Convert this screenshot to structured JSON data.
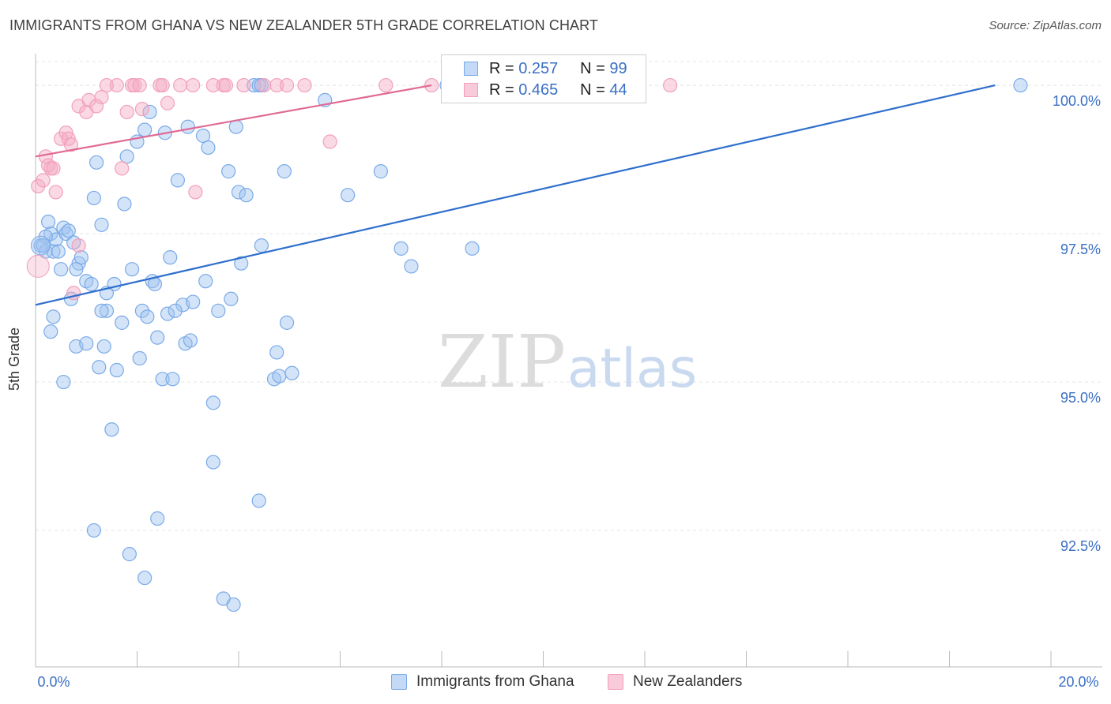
{
  "title": "IMMIGRANTS FROM GHANA VS NEW ZEALANDER 5TH GRADE CORRELATION CHART",
  "source": "Source: ZipAtlas.com",
  "watermark": {
    "zip": "ZIP",
    "atlas": "atlas"
  },
  "legend": {
    "r_label": "R =",
    "n_label": "N =",
    "series": [
      {
        "r": "0.257",
        "n": "99"
      },
      {
        "r": "0.465",
        "n": "44"
      }
    ]
  },
  "chart_data": {
    "type": "scatter",
    "title": "IMMIGRANTS FROM GHANA VS NEW ZEALANDER 5TH GRADE CORRELATION CHART",
    "ylabel": "5th Grade",
    "xlabel": "",
    "xlim": [
      0,
      20
    ],
    "ylim": [
      90.2,
      100.4
    ],
    "x_tick_labels": [
      "0.0%",
      "20.0%"
    ],
    "y_ticks": [
      92.5,
      95.0,
      97.5,
      100.0
    ],
    "y_tick_labels": [
      "92.5%",
      "95.0%",
      "97.5%",
      "100.0%"
    ],
    "series": [
      {
        "name": "Immigrants from Ghana",
        "color": "#7aaae8",
        "line_color": "#2f6fcc",
        "trend": {
          "x": [
            0,
            18.9
          ],
          "y": [
            96.3,
            100.0
          ]
        },
        "points": [
          [
            0.1,
            97.3
          ],
          [
            0.2,
            97.2
          ],
          [
            0.25,
            97.7
          ],
          [
            0.3,
            97.5
          ],
          [
            0.35,
            97.2
          ],
          [
            0.4,
            97.4
          ],
          [
            0.45,
            97.2
          ],
          [
            0.5,
            96.9
          ],
          [
            0.55,
            97.6
          ],
          [
            0.6,
            97.5
          ],
          [
            0.65,
            97.55
          ],
          [
            0.7,
            96.4
          ],
          [
            0.75,
            97.35
          ],
          [
            0.85,
            97.0
          ],
          [
            0.9,
            97.1
          ],
          [
            1.0,
            96.7
          ],
          [
            1.1,
            96.65
          ],
          [
            1.15,
            98.1
          ],
          [
            1.2,
            98.7
          ],
          [
            1.3,
            97.65
          ],
          [
            1.4,
            96.2
          ],
          [
            1.55,
            96.65
          ],
          [
            1.6,
            95.2
          ],
          [
            1.7,
            96.0
          ],
          [
            1.75,
            98.0
          ],
          [
            1.8,
            98.8
          ],
          [
            1.9,
            96.9
          ],
          [
            2.0,
            99.05
          ],
          [
            2.05,
            95.4
          ],
          [
            2.1,
            96.2
          ],
          [
            2.15,
            99.25
          ],
          [
            2.2,
            96.1
          ],
          [
            2.3,
            96.7
          ],
          [
            2.35,
            96.65
          ],
          [
            2.4,
            95.75
          ],
          [
            2.5,
            95.05
          ],
          [
            2.55,
            99.2
          ],
          [
            2.6,
            96.15
          ],
          [
            2.65,
            97.1
          ],
          [
            2.8,
            98.4
          ],
          [
            2.9,
            96.3
          ],
          [
            2.95,
            95.65
          ],
          [
            3.0,
            99.3
          ],
          [
            3.05,
            95.7
          ],
          [
            3.1,
            96.35
          ],
          [
            3.3,
            99.15
          ],
          [
            3.35,
            96.7
          ],
          [
            3.4,
            98.95
          ],
          [
            3.5,
            94.65
          ],
          [
            3.6,
            96.2
          ],
          [
            3.7,
            91.35
          ],
          [
            3.8,
            98.55
          ],
          [
            3.85,
            96.4
          ],
          [
            3.9,
            91.25
          ],
          [
            3.95,
            99.3
          ],
          [
            4.0,
            98.2
          ],
          [
            4.05,
            97.0
          ],
          [
            4.15,
            98.15
          ],
          [
            4.3,
            100.0
          ],
          [
            4.4,
            100.0
          ],
          [
            4.4,
            93.0
          ],
          [
            4.45,
            97.3
          ],
          [
            4.7,
            95.05
          ],
          [
            4.8,
            95.1
          ],
          [
            4.75,
            95.5
          ],
          [
            4.9,
            98.55
          ],
          [
            4.95,
            96.0
          ],
          [
            5.05,
            95.15
          ],
          [
            5.7,
            99.75
          ],
          [
            6.15,
            98.15
          ],
          [
            6.8,
            98.55
          ],
          [
            7.2,
            97.25
          ],
          [
            7.4,
            96.95
          ],
          [
            8.2,
            100.0
          ],
          [
            8.6,
            97.25
          ],
          [
            0.2,
            97.45
          ],
          [
            0.15,
            97.3
          ],
          [
            0.3,
            95.85
          ],
          [
            0.35,
            96.1
          ],
          [
            0.55,
            95.0
          ],
          [
            0.8,
            95.6
          ],
          [
            1.3,
            96.2
          ],
          [
            1.5,
            94.2
          ],
          [
            1.15,
            92.5
          ],
          [
            1.85,
            92.1
          ],
          [
            2.15,
            91.7
          ],
          [
            2.4,
            92.7
          ],
          [
            2.7,
            95.05
          ],
          [
            3.5,
            93.65
          ],
          [
            2.25,
            99.55
          ],
          [
            1.0,
            95.65
          ],
          [
            1.25,
            95.25
          ],
          [
            1.35,
            95.6
          ],
          [
            4.45,
            100.0
          ],
          [
            8.1,
            100.0
          ],
          [
            19.4,
            100.0
          ],
          [
            1.4,
            96.5
          ],
          [
            0.8,
            96.9
          ],
          [
            2.75,
            96.2
          ]
        ]
      },
      {
        "name": "New Zealanders",
        "color": "#f2a0bc",
        "line_color": "#e06a95",
        "trend": {
          "x": [
            0,
            7.8
          ],
          "y": [
            98.8,
            100.0
          ]
        },
        "points": [
          [
            0.05,
            98.3
          ],
          [
            0.15,
            98.4
          ],
          [
            0.2,
            98.8
          ],
          [
            0.25,
            98.65
          ],
          [
            0.3,
            98.6
          ],
          [
            0.35,
            98.6
          ],
          [
            0.4,
            98.2
          ],
          [
            0.5,
            99.1
          ],
          [
            0.6,
            99.2
          ],
          [
            0.65,
            99.1
          ],
          [
            0.7,
            99.0
          ],
          [
            0.85,
            99.65
          ],
          [
            1.0,
            99.55
          ],
          [
            1.05,
            99.75
          ],
          [
            1.2,
            99.65
          ],
          [
            1.3,
            99.8
          ],
          [
            1.4,
            100.0
          ],
          [
            1.6,
            100.0
          ],
          [
            1.7,
            98.6
          ],
          [
            1.8,
            99.55
          ],
          [
            1.9,
            100.0
          ],
          [
            1.95,
            100.0
          ],
          [
            2.05,
            100.0
          ],
          [
            2.1,
            99.6
          ],
          [
            2.45,
            100.0
          ],
          [
            2.5,
            100.0
          ],
          [
            2.6,
            99.7
          ],
          [
            2.85,
            100.0
          ],
          [
            3.1,
            100.0
          ],
          [
            3.15,
            98.2
          ],
          [
            3.5,
            100.0
          ],
          [
            3.7,
            100.0
          ],
          [
            3.75,
            100.0
          ],
          [
            4.1,
            100.0
          ],
          [
            4.5,
            100.0
          ],
          [
            4.75,
            100.0
          ],
          [
            4.95,
            100.0
          ],
          [
            5.3,
            100.0
          ],
          [
            5.8,
            99.05
          ],
          [
            6.9,
            100.0
          ],
          [
            7.8,
            100.0
          ],
          [
            12.5,
            100.0
          ],
          [
            0.85,
            97.3
          ],
          [
            0.75,
            96.5
          ]
        ]
      }
    ]
  }
}
